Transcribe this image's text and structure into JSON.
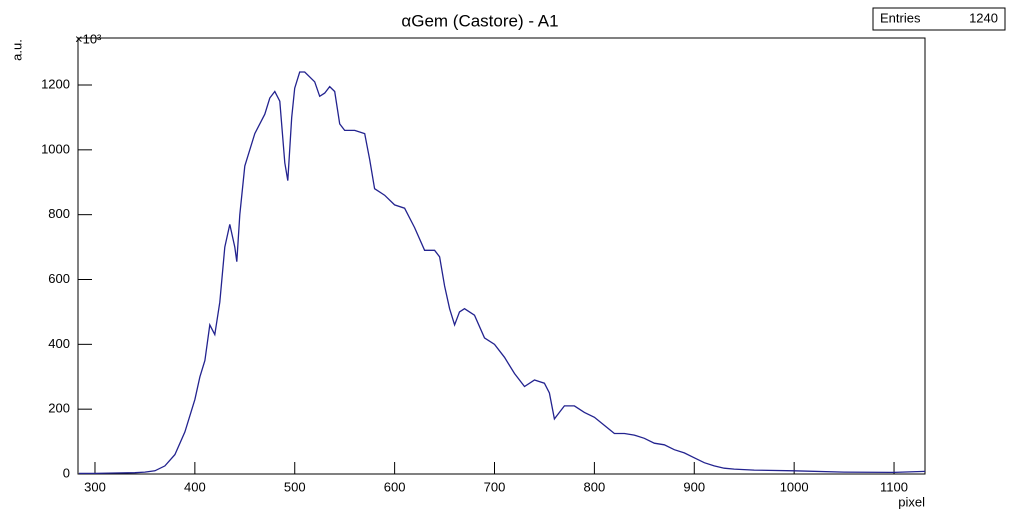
{
  "chart_data": {
    "type": "line",
    "title": "αGem (Castore) - A1",
    "x_label": "pixel",
    "y_label": "a.u.",
    "y_multiplier": "×10³",
    "stats": {
      "label": "Entries",
      "value": 1240
    },
    "color": "#23238f",
    "xlim": [
      283,
      1131
    ],
    "ylim": [
      0,
      1345
    ],
    "xticks": [
      300,
      400,
      500,
      600,
      700,
      800,
      900,
      1000,
      1100
    ],
    "yticks": [
      0,
      200,
      400,
      600,
      800,
      1000,
      1200
    ],
    "x": [
      284,
      300,
      320,
      340,
      350,
      360,
      370,
      380,
      390,
      400,
      405,
      410,
      415,
      420,
      425,
      430,
      435,
      440,
      442,
      445,
      450,
      460,
      470,
      475,
      480,
      485,
      490,
      493,
      497,
      500,
      505,
      510,
      520,
      525,
      530,
      535,
      540,
      545,
      550,
      560,
      570,
      575,
      580,
      590,
      600,
      610,
      620,
      630,
      640,
      645,
      650,
      655,
      660,
      665,
      670,
      680,
      690,
      700,
      710,
      720,
      730,
      740,
      750,
      755,
      760,
      765,
      770,
      780,
      790,
      800,
      810,
      820,
      830,
      840,
      850,
      860,
      870,
      880,
      890,
      900,
      910,
      920,
      930,
      940,
      960,
      1000,
      1050,
      1100,
      1131
    ],
    "values": [
      2,
      2,
      3,
      4,
      6,
      10,
      25,
      60,
      130,
      230,
      300,
      350,
      460,
      430,
      530,
      700,
      770,
      700,
      655,
      800,
      950,
      1050,
      1110,
      1160,
      1180,
      1150,
      960,
      905,
      1100,
      1190,
      1240,
      1240,
      1210,
      1165,
      1175,
      1195,
      1180,
      1080,
      1060,
      1060,
      1050,
      970,
      880,
      860,
      830,
      820,
      760,
      690,
      690,
      670,
      580,
      510,
      460,
      500,
      510,
      490,
      420,
      400,
      360,
      310,
      270,
      290,
      280,
      250,
      170,
      190,
      210,
      210,
      190,
      175,
      150,
      125,
      125,
      120,
      110,
      95,
      90,
      75,
      65,
      50,
      35,
      25,
      18,
      15,
      12,
      10,
      6,
      5,
      8
    ]
  }
}
